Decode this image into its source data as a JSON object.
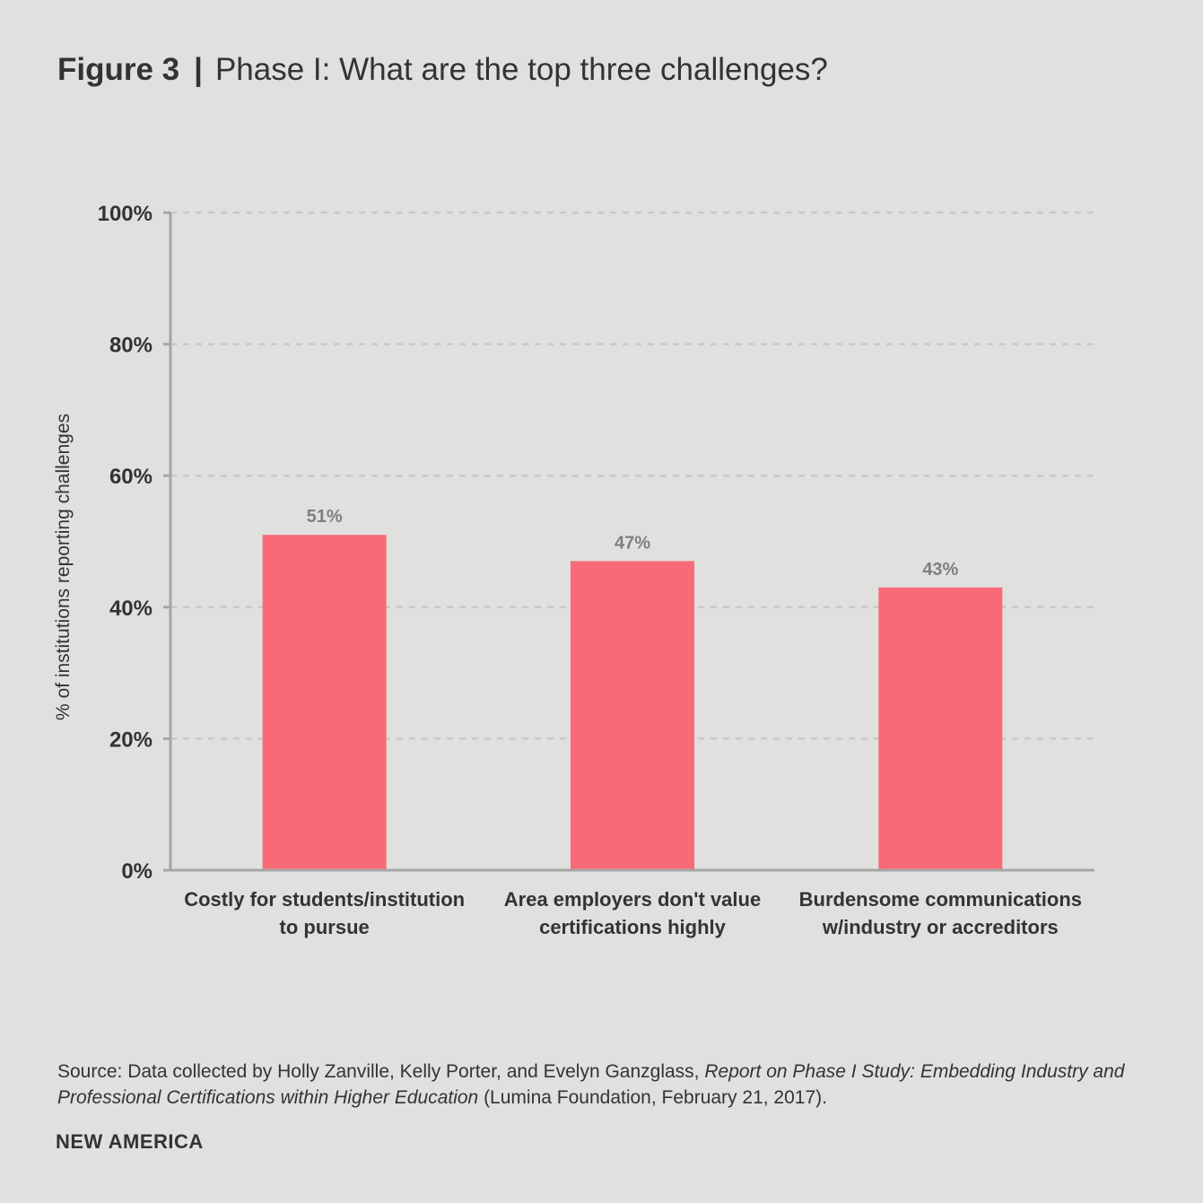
{
  "header": {
    "figure_label": "Figure 3",
    "separator": "|",
    "title": "Phase I: What are the top three challenges?"
  },
  "chart_data": {
    "type": "bar",
    "categories": [
      [
        "Costly for students/institution",
        "to pursue"
      ],
      [
        "Area employers don't value",
        "certifications highly"
      ],
      [
        "Burdensome communications",
        "w/industry or accreditors"
      ]
    ],
    "values": [
      51,
      47,
      43
    ],
    "data_labels": [
      "51%",
      "47%",
      "43%"
    ],
    "ylabel": "% of institutions reporting challenges",
    "ylim": [
      0,
      100
    ],
    "yticks": [
      0,
      20,
      40,
      60,
      80,
      100
    ],
    "ytick_labels": [
      "0%",
      "20%",
      "40%",
      "60%",
      "80%",
      "100%"
    ],
    "grid": "horizontal dashed",
    "colors": {
      "bar": "#f96a77",
      "axis": "#a6a6a6",
      "grid": "#c9c9c7",
      "tick_text": "#333333",
      "data_label": "#7f7f7f"
    }
  },
  "footer": {
    "source_prefix": "Source: Data collected by Holly Zanville, Kelly Porter, and Evelyn Ganzglass, ",
    "source_title": "Report on Phase I Study: Embedding Industry and Professional Certifications within Higher Education",
    "source_suffix": " (Lumina Foundation, February 21, 2017).",
    "brand": "NEW AMERICA"
  }
}
